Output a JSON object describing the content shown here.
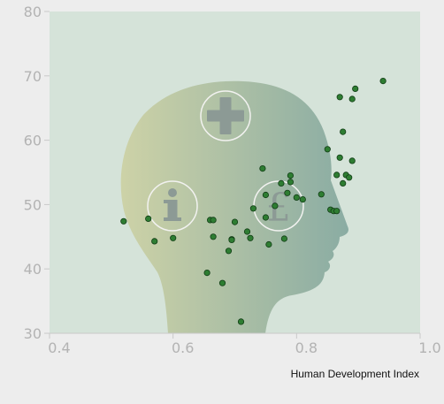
{
  "chart_data": {
    "type": "scatter",
    "title": "",
    "xlabel": "Human Development Index",
    "ylabel": "",
    "xlim": [
      0.4,
      1.0
    ],
    "ylim": [
      30,
      80
    ],
    "x_ticks": [
      "0.4",
      "0.6",
      "0.8",
      "1.0"
    ],
    "y_ticks": [
      "30",
      "40",
      "50",
      "60",
      "70",
      "80"
    ],
    "grid": false,
    "legend": "none",
    "background_illustration": "head-silhouette-with-plus-info-pound-icons",
    "colors": {
      "plot_background": "#d5e3d9",
      "page_background": "#ededed",
      "point_fill": "#2e7d32",
      "point_stroke": "#123d16",
      "head_left": "#cdd2a7",
      "head_right": "#8aaca3"
    },
    "series": [
      {
        "points": [
          [
            0.52,
            47.4
          ],
          [
            0.56,
            47.8
          ],
          [
            0.57,
            44.3
          ],
          [
            0.6,
            44.8
          ],
          [
            0.655,
            39.4
          ],
          [
            0.66,
            47.6
          ],
          [
            0.665,
            47.6
          ],
          [
            0.665,
            45.0
          ],
          [
            0.68,
            37.8
          ],
          [
            0.69,
            42.8
          ],
          [
            0.695,
            44.6
          ],
          [
            0.695,
            44.5
          ],
          [
            0.7,
            47.3
          ],
          [
            0.71,
            31.8
          ],
          [
            0.72,
            45.8
          ],
          [
            0.725,
            44.8
          ],
          [
            0.73,
            49.4
          ],
          [
            0.745,
            55.6
          ],
          [
            0.75,
            51.5
          ],
          [
            0.75,
            48.0
          ],
          [
            0.755,
            43.8
          ],
          [
            0.765,
            49.8
          ],
          [
            0.775,
            53.3
          ],
          [
            0.78,
            44.7
          ],
          [
            0.785,
            51.8
          ],
          [
            0.79,
            54.5
          ],
          [
            0.79,
            53.5
          ],
          [
            0.8,
            51.1
          ],
          [
            0.81,
            50.8
          ],
          [
            0.84,
            51.6
          ],
          [
            0.85,
            58.6
          ],
          [
            0.855,
            49.2
          ],
          [
            0.86,
            49.0
          ],
          [
            0.865,
            54.6
          ],
          [
            0.865,
            49.0
          ],
          [
            0.87,
            57.3
          ],
          [
            0.87,
            66.7
          ],
          [
            0.875,
            61.3
          ],
          [
            0.875,
            53.3
          ],
          [
            0.88,
            54.6
          ],
          [
            0.885,
            54.2
          ],
          [
            0.89,
            56.8
          ],
          [
            0.89,
            66.4
          ],
          [
            0.895,
            68.0
          ],
          [
            0.94,
            69.2
          ]
        ]
      }
    ]
  }
}
